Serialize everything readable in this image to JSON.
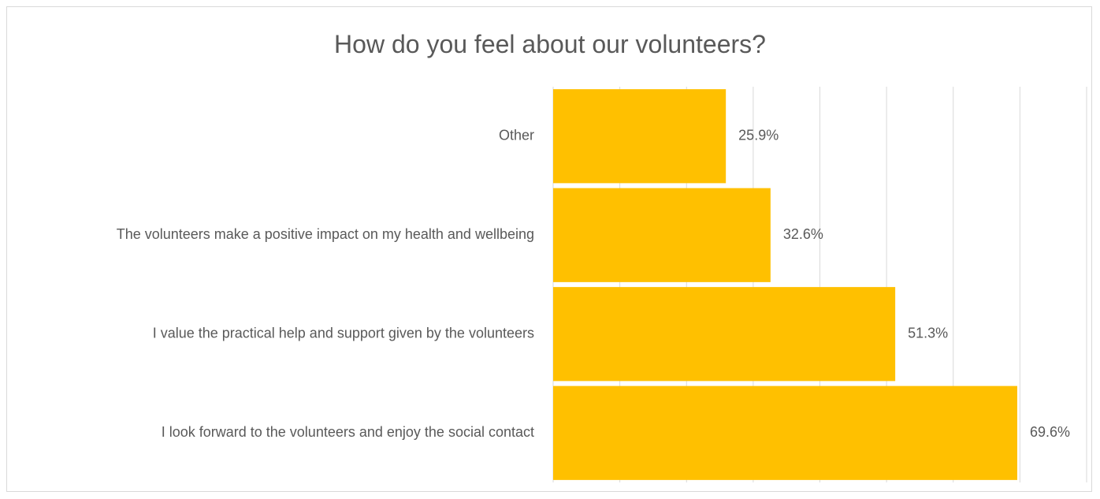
{
  "chart_data": {
    "type": "bar",
    "orientation": "horizontal",
    "title": "How do you feel about our volunteers?",
    "categories": [
      "Other",
      "The volunteers make a positive impact on my health and wellbeing",
      "I value the practical help and support given by the volunteers",
      "I look forward to the volunteers and enjoy the social contact"
    ],
    "values": [
      25.9,
      32.6,
      51.3,
      69.6
    ],
    "data_labels": [
      "25.9%",
      "32.6%",
      "51.3%",
      "69.6%"
    ],
    "unit": "%",
    "xlim": [
      0,
      80
    ],
    "x_gridline_step": 10,
    "grid": true,
    "legend": "none",
    "bar_color": "#FFC000",
    "gridline_color": "#d9d9d9",
    "text_color": "#595959"
  }
}
